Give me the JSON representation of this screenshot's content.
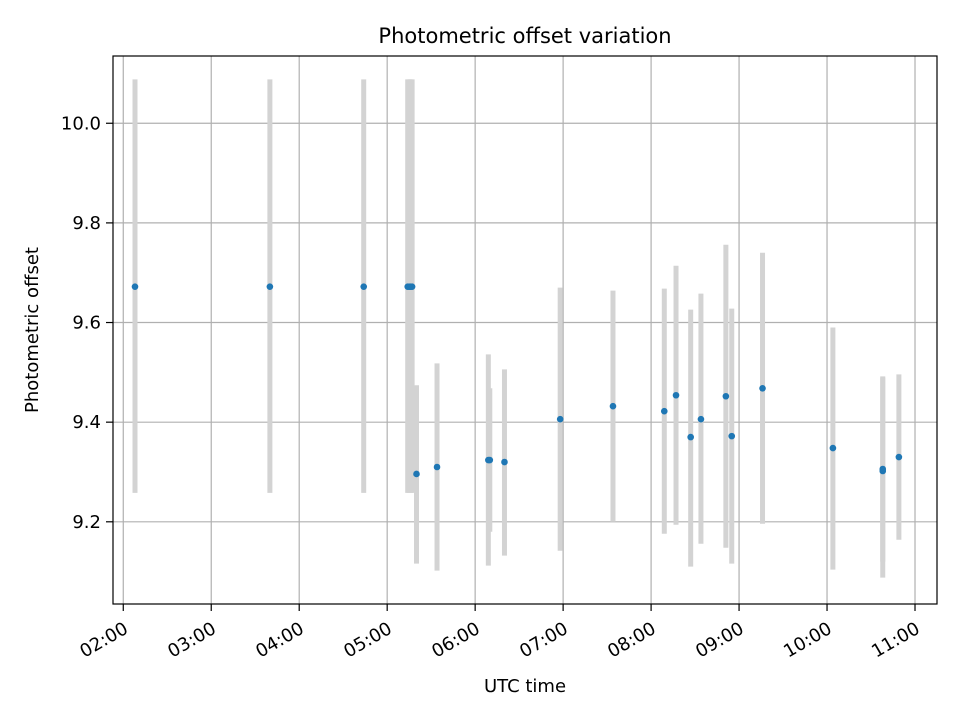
{
  "chart_data": {
    "type": "scatter",
    "title": "Photometric offset variation",
    "xlabel": "UTC time",
    "ylabel": "Photometric offset",
    "grid": true,
    "xlim": [
      "01:53",
      "11:15"
    ],
    "ylim": [
      9.035,
      10.135
    ],
    "x_ticks": [
      "02:00",
      "03:00",
      "04:00",
      "05:00",
      "06:00",
      "07:00",
      "08:00",
      "09:00",
      "10:00",
      "11:00"
    ],
    "y_ticks": [
      9.2,
      9.4,
      9.6,
      9.8,
      10.0
    ],
    "y_tick_labels": [
      "9.2",
      "9.4",
      "9.6",
      "9.8",
      "10.0"
    ],
    "colors": {
      "points": "#1f77b4",
      "error_bars": "#d3d3d3",
      "grid": "#b0b0b0"
    },
    "series": [
      {
        "points": [
          {
            "x": "02:08",
            "y": 9.672,
            "err_low": 9.258,
            "err_high": 10.088
          },
          {
            "x": "03:40",
            "y": 9.672,
            "err_low": 9.258,
            "err_high": 10.088
          },
          {
            "x": "04:44",
            "y": 9.672,
            "err_low": 9.258,
            "err_high": 10.088
          },
          {
            "x": "05:14",
            "y": 9.672,
            "err_low": 9.258,
            "err_high": 10.088
          },
          {
            "x": "05:15",
            "y": 9.672,
            "err_low": 9.258,
            "err_high": 10.088
          },
          {
            "x": "05:16",
            "y": 9.672,
            "err_low": 9.258,
            "err_high": 10.088
          },
          {
            "x": "05:17",
            "y": 9.672,
            "err_low": 9.258,
            "err_high": 10.088
          },
          {
            "x": "05:20",
            "y": 9.296,
            "err_low": 9.116,
            "err_high": 9.474
          },
          {
            "x": "05:34",
            "y": 9.31,
            "err_low": 9.102,
            "err_high": 9.518
          },
          {
            "x": "06:09",
            "y": 9.324,
            "err_low": 9.112,
            "err_high": 9.536
          },
          {
            "x": "06:10",
            "y": 9.324,
            "err_low": 9.18,
            "err_high": 9.468
          },
          {
            "x": "06:20",
            "y": 9.32,
            "err_low": 9.132,
            "err_high": 9.506
          },
          {
            "x": "06:58",
            "y": 9.406,
            "err_low": 9.142,
            "err_high": 9.67
          },
          {
            "x": "07:34",
            "y": 9.432,
            "err_low": 9.2,
            "err_high": 9.664
          },
          {
            "x": "08:09",
            "y": 9.422,
            "err_low": 9.176,
            "err_high": 9.668
          },
          {
            "x": "08:17",
            "y": 9.454,
            "err_low": 9.194,
            "err_high": 9.714
          },
          {
            "x": "08:27",
            "y": 9.37,
            "err_low": 9.11,
            "err_high": 9.626
          },
          {
            "x": "08:34",
            "y": 9.406,
            "err_low": 9.156,
            "err_high": 9.658
          },
          {
            "x": "08:51",
            "y": 9.452,
            "err_low": 9.148,
            "err_high": 9.756
          },
          {
            "x": "08:55",
            "y": 9.372,
            "err_low": 9.116,
            "err_high": 9.628
          },
          {
            "x": "09:16",
            "y": 9.468,
            "err_low": 9.196,
            "err_high": 9.74
          },
          {
            "x": "10:04",
            "y": 9.348,
            "err_low": 9.104,
            "err_high": 9.59
          },
          {
            "x": "10:38",
            "y": 9.302,
            "err_low": 9.088,
            "err_high": 9.49
          },
          {
            "x": "10:38",
            "y": 9.306,
            "err_low": 9.12,
            "err_high": 9.492
          },
          {
            "x": "10:49",
            "y": 9.33,
            "err_low": 9.164,
            "err_high": 9.496
          }
        ]
      }
    ]
  }
}
